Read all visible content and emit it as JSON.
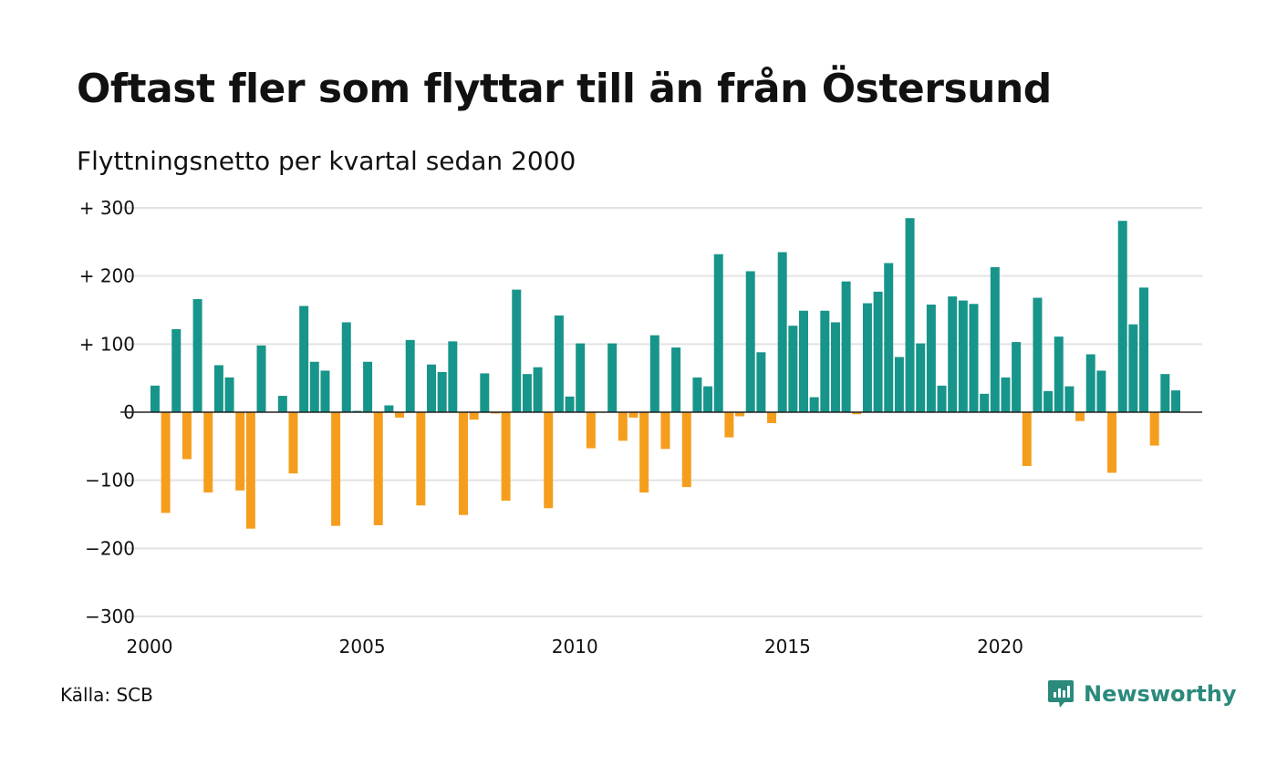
{
  "header": {
    "title": "Oftast fler som flyttar till än från Östersund",
    "subtitle": "Flyttningsnetto per kvartal sedan 2000"
  },
  "footer": {
    "source": "Källa: SCB",
    "brand": "Newsworthy"
  },
  "colors": {
    "positive": "#17958a",
    "negative": "#f59e1d",
    "grid": "#e3e3e3",
    "brand": "#2b8a7c"
  },
  "chart_data": {
    "type": "bar",
    "title": "Oftast fler som flyttar till än från Östersund",
    "subtitle": "Flyttningsnetto per kvartal sedan 2000",
    "xlabel": "",
    "ylabel": "",
    "ylim": [
      -300,
      300
    ],
    "xlim": [
      2000,
      2024.75
    ],
    "y_ticks": [
      300,
      200,
      100,
      0,
      -100,
      -200,
      -300
    ],
    "y_tick_labels": [
      "+ 300",
      "+ 200",
      "+ 100",
      "0",
      "−100",
      "−200",
      "−300"
    ],
    "x_ticks": [
      2000,
      2005,
      2010,
      2015,
      2020
    ],
    "x_tick_labels": [
      "2000",
      "2005",
      "2010",
      "2015",
      "2020"
    ],
    "grid": true,
    "start_year": 2000,
    "periods_per_year": 4,
    "values": [
      39,
      -148,
      122,
      -69,
      166,
      -118,
      69,
      51,
      -115,
      -171,
      98,
      0,
      24,
      -90,
      156,
      74,
      61,
      -167,
      132,
      2,
      74,
      -166,
      10,
      -8,
      106,
      -137,
      70,
      59,
      104,
      -151,
      -11,
      57,
      -2,
      -130,
      180,
      56,
      66,
      -141,
      142,
      23,
      101,
      -53,
      0,
      101,
      -42,
      -8,
      -118,
      113,
      -54,
      95,
      -110,
      51,
      38,
      232,
      -37,
      -6,
      207,
      88,
      -16,
      235,
      127,
      149,
      22,
      149,
      132,
      192,
      -3,
      160,
      177,
      219,
      81,
      285,
      101,
      158,
      39,
      170,
      164,
      159,
      27,
      213,
      51,
      103,
      -79,
      168,
      31,
      111,
      38,
      -13,
      85,
      61,
      -89,
      281,
      129,
      183,
      -49,
      56,
      32
    ]
  }
}
